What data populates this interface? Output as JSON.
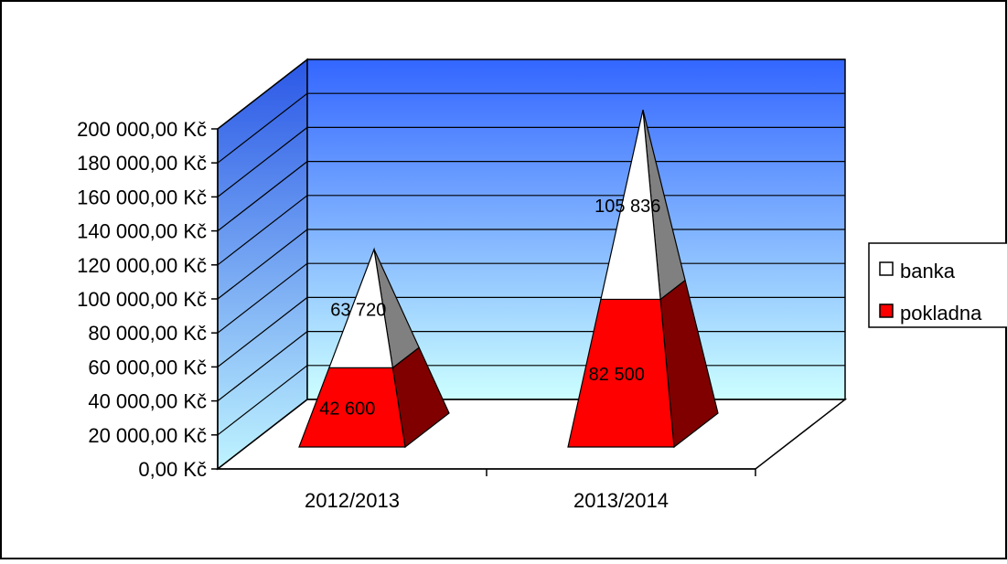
{
  "chart_data": {
    "type": "bar",
    "style": "stacked 3D pyramid",
    "categories": [
      "2012/2013",
      "2013/2014"
    ],
    "series": [
      {
        "name": "pokladna",
        "values": [
          42600,
          82500
        ],
        "labels": [
          "42 600",
          "82 500"
        ],
        "color": "#ff0000"
      },
      {
        "name": "banka",
        "values": [
          63720,
          105836
        ],
        "labels": [
          "63 720",
          "105 836"
        ],
        "color": "#ffffff"
      }
    ],
    "ylim": [
      0,
      200000
    ],
    "yticks": [
      0,
      20000,
      40000,
      60000,
      80000,
      100000,
      120000,
      140000,
      160000,
      180000,
      200000
    ],
    "ytick_labels": [
      "0,00 Kč",
      "20 000,00 Kč",
      "40 000,00 Kč",
      "60 000,00 Kč",
      "80 000,00 Kč",
      "100 000,00 Kč",
      "120 000,00 Kč",
      "140 000,00 Kč",
      "160 000,00 Kč",
      "180 000,00 Kč",
      "200 000,00 Kč"
    ],
    "grid": true,
    "legend_position": "right",
    "legend_order": [
      "banka",
      "pokladna"
    ],
    "wall_gradient": [
      "#3366ff",
      "#ccffff"
    ]
  }
}
